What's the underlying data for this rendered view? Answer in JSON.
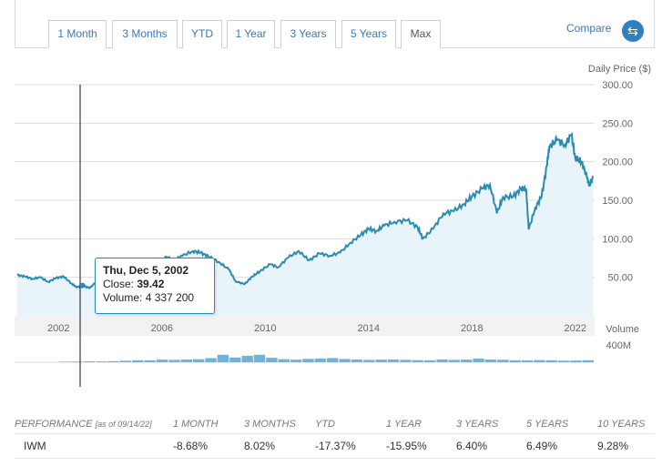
{
  "tabs": [
    {
      "label": "1 Month"
    },
    {
      "label": "3 Months"
    },
    {
      "label": "YTD"
    },
    {
      "label": "1 Year"
    },
    {
      "label": "3 Years"
    },
    {
      "label": "5 Years"
    },
    {
      "label": "Max",
      "active": true
    }
  ],
  "compare": {
    "label": "Compare",
    "icon": "swap-arrows-icon"
  },
  "chart_data": {
    "type": "area",
    "price_axis_label": "Daily Price ($)",
    "volume_axis_label": "Volume",
    "y_ticks": [
      "50.00",
      "100.00",
      "150.00",
      "200.00",
      "250.00",
      "300.00"
    ],
    "ylim": [
      0,
      300
    ],
    "x_ticks": [
      "2002",
      "2006",
      "2010",
      "2014",
      "2018",
      "2022"
    ],
    "volume_tick": "400M",
    "line_color": "#2a8bb0",
    "volume_color": "#6fb3dd",
    "series": [
      {
        "x": [
          2000.4,
          2000.7,
          2001.0,
          2001.3,
          2001.6,
          2001.9,
          2002.2,
          2002.5,
          2002.7,
          2002.93,
          2003.2,
          2003.5,
          2003.8,
          2004.2,
          2004.6,
          2005.0,
          2005.4,
          2005.8,
          2006.2,
          2006.5,
          2006.8,
          2007.2,
          2007.5,
          2007.8,
          2008.2,
          2008.6,
          2008.85,
          2009.2,
          2009.5,
          2009.8,
          2010.2,
          2010.5,
          2010.9,
          2011.3,
          2011.7,
          2012.1,
          2012.5,
          2012.9,
          2013.3,
          2013.7,
          2014.0,
          2014.3,
          2014.6,
          2015.0,
          2015.5,
          2015.9,
          2016.1,
          2016.5,
          2016.9,
          2017.3,
          2017.7,
          2018.0,
          2018.4,
          2018.7,
          2018.97,
          2019.2,
          2019.6,
          2019.9,
          2020.1,
          2020.2,
          2020.45,
          2020.7,
          2020.9,
          2021.0,
          2021.3,
          2021.6,
          2021.85,
          2022.0,
          2022.25,
          2022.45,
          2022.55,
          2022.7
        ],
        "y": [
          53,
          51,
          48,
          50,
          44,
          49,
          51,
          42,
          37,
          39.42,
          36,
          45,
          50,
          57,
          55,
          64,
          63,
          70,
          76,
          72,
          78,
          84,
          82,
          77,
          70,
          60,
          45,
          41,
          51,
          58,
          67,
          63,
          76,
          84,
          72,
          81,
          78,
          82,
          95,
          105,
          113,
          110,
          117,
          122,
          124,
          115,
          100,
          113,
          133,
          136,
          145,
          155,
          165,
          170,
          133,
          154,
          155,
          165,
          165,
          112,
          140,
          155,
          195,
          220,
          228,
          222,
          235,
          205,
          200,
          180,
          170,
          180
        ]
      }
    ],
    "volume_bars_million": [
      8,
      10,
      14,
      12,
      16,
      22,
      30,
      28,
      38,
      35,
      40,
      46,
      60,
      110,
      70,
      95,
      110,
      65,
      45,
      38,
      50,
      55,
      62,
      48,
      42,
      35,
      38,
      40,
      36,
      32,
      30,
      42,
      34,
      38,
      55,
      40,
      36,
      30,
      28,
      32,
      30,
      24,
      26,
      30
    ],
    "tooltip": {
      "date": "Thu, Dec 5, 2002",
      "close_label": "Close:",
      "close": "39.42",
      "volume_label": "Volume:",
      "volume": "4 337 200"
    }
  },
  "performance": {
    "title": "PERFORMANCE",
    "as_of": "[as of 09/14/22]",
    "columns": [
      "1 MONTH",
      "3 MONTHS",
      "YTD",
      "1 YEAR",
      "3 YEARS",
      "5 YEARS",
      "10 YEARS"
    ],
    "rows": [
      {
        "ticker": "IWM",
        "values": [
          "-8.68%",
          "8.02%",
          "-17.37%",
          "-15.95%",
          "6.40%",
          "6.49%",
          "9.28%"
        ]
      }
    ]
  }
}
